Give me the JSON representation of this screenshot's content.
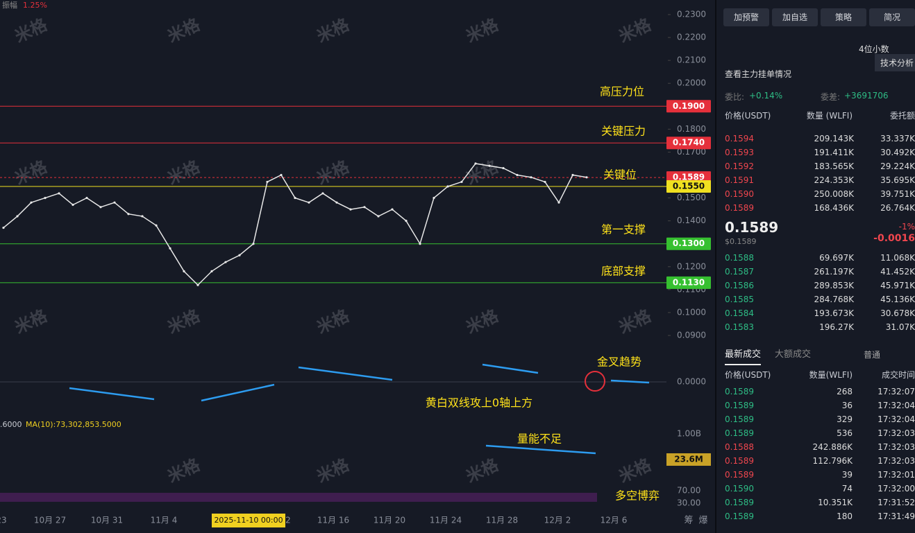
{
  "top": {
    "amp_label": "振幅",
    "amp": "1.25%"
  },
  "watermark": "米格",
  "chart": {
    "ylim": [
      0.09,
      0.23
    ],
    "yticks": [
      {
        "value": 0.23,
        "label": "0.2300"
      },
      {
        "value": 0.22,
        "label": "0.2200"
      },
      {
        "value": 0.21,
        "label": "0.2100"
      },
      {
        "value": 0.2,
        "label": "0.2000"
      },
      {
        "value": 0.18,
        "label": "0.1800"
      },
      {
        "value": 0.17,
        "label": "0.1700"
      },
      {
        "value": 0.15,
        "label": "0.1500"
      },
      {
        "value": 0.14,
        "label": "0.1400"
      },
      {
        "value": 0.12,
        "label": "0.1200"
      },
      {
        "value": 0.11,
        "label": "0.1100"
      },
      {
        "value": 0.1,
        "label": "0.1000"
      },
      {
        "value": 0.09,
        "label": "0.0900"
      }
    ],
    "levels": [
      {
        "value": 0.19,
        "label": "0.1900",
        "color": "#e5303b"
      },
      {
        "value": 0.174,
        "label": "0.1740",
        "color": "#e5303b"
      },
      {
        "value": 0.1589,
        "label": "0.1589",
        "color": "#e5303b"
      },
      {
        "value": 0.155,
        "label": "0.1550",
        "color": "#f0e020"
      },
      {
        "value": 0.13,
        "label": "0.1300",
        "color": "#36c030"
      },
      {
        "value": 0.113,
        "label": "0.1130",
        "color": "#36c030"
      }
    ],
    "close": [
      0.137,
      0.142,
      0.148,
      0.15,
      0.152,
      0.147,
      0.15,
      0.146,
      0.148,
      0.143,
      0.142,
      0.138,
      0.128,
      0.118,
      0.112,
      0.118,
      0.122,
      0.125,
      0.13,
      0.157,
      0.16,
      0.15,
      0.148,
      0.152,
      0.148,
      0.145,
      0.146,
      0.142,
      0.145,
      0.14,
      0.13,
      0.15,
      0.155,
      0.157,
      0.165,
      0.164,
      0.163,
      0.16,
      0.159,
      0.157,
      0.148,
      0.16,
      0.159
    ],
    "close_color": "#e8e8e8",
    "annotations": [
      "高压力位",
      "关键压力",
      "关键位",
      "第一支撑",
      "底部支撑",
      "金叉趋势",
      "黄白双线攻上0轴上方",
      "量能不足",
      "多空博弈"
    ],
    "xlabels": [
      "23",
      "10月 27",
      "10月 31",
      "11月 4",
      "2",
      "11月 16",
      "11月 20",
      "11月 24",
      "11月 28",
      "12月 2",
      "12月 6"
    ],
    "crosshair_date": "2025-11-10 00:00",
    "corner": [
      "筹",
      "爆"
    ],
    "macd_zero": "0.0000",
    "vol_ma_partial": ".6000",
    "vol_ma": "MA(10):73,302,853.5000",
    "vol_top": "1.00B",
    "vol_last": "23.6M",
    "rsi": [
      "70.00",
      "30.00"
    ]
  },
  "side": {
    "buttons": [
      "加预警",
      "加自选",
      "策略",
      "简况"
    ],
    "decimals": "4位小数",
    "tooltip": "技术分析",
    "main_orders": "查看主力挂单情况",
    "ratio_label": "委比:",
    "ratio": "+0.14%",
    "diff_label": "委差:",
    "diff": "+3691706",
    "book_headers": [
      "价格(USDT)",
      "数量 (WLFI)",
      "委托额"
    ],
    "asks": [
      [
        "0.1594",
        "209.143K",
        "33.337K"
      ],
      [
        "0.1593",
        "191.411K",
        "30.492K"
      ],
      [
        "0.1592",
        "183.565K",
        "29.224K"
      ],
      [
        "0.1591",
        "224.353K",
        "35.695K"
      ],
      [
        "0.1590",
        "250.008K",
        "39.751K"
      ],
      [
        "0.1589",
        "168.436K",
        "26.764K"
      ]
    ],
    "last": "0.1589",
    "last_usd": "$0.1589",
    "change_pct": "-1%",
    "change": "-0.0016",
    "bids": [
      [
        "0.1588",
        "69.697K",
        "11.068K"
      ],
      [
        "0.1587",
        "261.197K",
        "41.452K"
      ],
      [
        "0.1586",
        "289.853K",
        "45.971K"
      ],
      [
        "0.1585",
        "284.768K",
        "45.136K"
      ],
      [
        "0.1584",
        "193.673K",
        "30.678K"
      ],
      [
        "0.1583",
        "196.27K",
        "31.07K"
      ]
    ],
    "tabs": [
      "最新成交",
      "大额成交"
    ],
    "normal": "普通",
    "trade_headers": [
      "价格(USDT)",
      "数量(WLFI)",
      "成交时间"
    ],
    "trades": [
      [
        "0.1589",
        "268",
        "17:32:07",
        "#2ebd85"
      ],
      [
        "0.1589",
        "36",
        "17:32:04",
        "#2ebd85"
      ],
      [
        "0.1589",
        "329",
        "17:32:04",
        "#2ebd85"
      ],
      [
        "0.1589",
        "536",
        "17:32:03",
        "#2ebd85"
      ],
      [
        "0.1588",
        "242.886K",
        "17:32:03",
        "#f0464e"
      ],
      [
        "0.1589",
        "112.796K",
        "17:32:03",
        "#f0464e"
      ],
      [
        "0.1589",
        "39",
        "17:32:01",
        "#f0464e"
      ],
      [
        "0.1590",
        "74",
        "17:32:00",
        "#2ebd85"
      ],
      [
        "0.1589",
        "10.351K",
        "17:31:52",
        "#2ebd85"
      ],
      [
        "0.1589",
        "180",
        "17:31:49",
        "#2ebd85"
      ]
    ]
  }
}
